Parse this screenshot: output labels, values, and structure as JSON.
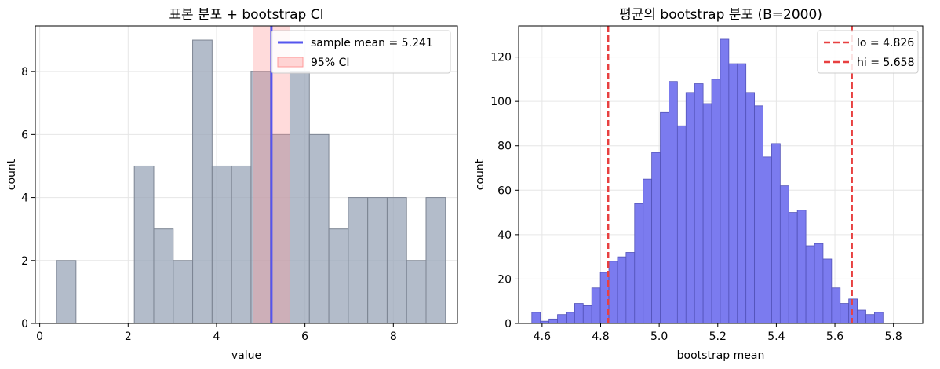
{
  "chart_data": [
    {
      "type": "bar",
      "title": "표본 분포 + bootstrap CI",
      "xlabel": "value",
      "ylabel": "count",
      "xlim": [
        -0.1,
        9.45
      ],
      "ylim": [
        0,
        9.45
      ],
      "xticks": [
        0,
        2,
        4,
        6,
        8
      ],
      "yticks": [
        0,
        2,
        4,
        6,
        8
      ],
      "grid": true,
      "legend_position": "top-right",
      "bar_color": "#9aa5b8",
      "bins": [
        {
          "x0": 0.38,
          "x1": 0.82,
          "count": 2
        },
        {
          "x0": 0.82,
          "x1": 1.26,
          "count": 0
        },
        {
          "x0": 1.26,
          "x1": 1.7,
          "count": 0
        },
        {
          "x0": 1.7,
          "x1": 2.14,
          "count": 0
        },
        {
          "x0": 2.14,
          "x1": 2.58,
          "count": 5
        },
        {
          "x0": 2.58,
          "x1": 3.02,
          "count": 3
        },
        {
          "x0": 3.02,
          "x1": 3.46,
          "count": 2
        },
        {
          "x0": 3.46,
          "x1": 3.9,
          "count": 9
        },
        {
          "x0": 3.9,
          "x1": 4.34,
          "count": 5
        },
        {
          "x0": 4.34,
          "x1": 4.78,
          "count": 5
        },
        {
          "x0": 4.78,
          "x1": 5.22,
          "count": 8
        },
        {
          "x0": 5.22,
          "x1": 5.66,
          "count": 6
        },
        {
          "x0": 5.66,
          "x1": 6.1,
          "count": 8
        },
        {
          "x0": 6.1,
          "x1": 6.54,
          "count": 6
        },
        {
          "x0": 6.54,
          "x1": 6.98,
          "count": 3
        },
        {
          "x0": 6.98,
          "x1": 7.42,
          "count": 4
        },
        {
          "x0": 7.42,
          "x1": 7.86,
          "count": 4
        },
        {
          "x0": 7.86,
          "x1": 8.3,
          "count": 4
        },
        {
          "x0": 8.3,
          "x1": 8.74,
          "count": 2
        },
        {
          "x0": 8.74,
          "x1": 9.18,
          "count": 4
        }
      ],
      "sample_mean": 5.241,
      "ci": [
        4.826,
        5.658
      ],
      "mean_color": "#5555ee",
      "ci_color": "#ff9999",
      "legend": [
        {
          "label": "sample mean = 5.241",
          "kind": "line",
          "color": "#5555ee"
        },
        {
          "label": "95% CI",
          "kind": "patch",
          "color": "#ff9999"
        }
      ]
    },
    {
      "type": "bar",
      "title": "평균의 bootstrap 분포 (B=2000)",
      "xlabel": "bootstrap mean",
      "ylabel": "count",
      "xlim": [
        4.52,
        5.9
      ],
      "ylim": [
        0,
        134
      ],
      "xticks": [
        4.6,
        4.8,
        5.0,
        5.2,
        5.4,
        5.6,
        5.8
      ],
      "yticks": [
        0,
        20,
        40,
        60,
        80,
        100,
        120
      ],
      "grid": true,
      "legend_position": "top-right",
      "bar_color": "#7b7bef",
      "bin_start": 4.565,
      "bin_width": 0.02925,
      "counts": [
        5,
        1,
        2,
        4,
        5,
        9,
        8,
        16,
        23,
        28,
        30,
        32,
        54,
        65,
        77,
        95,
        109,
        89,
        104,
        108,
        99,
        110,
        128,
        117,
        117,
        104,
        98,
        75,
        81,
        62,
        50,
        51,
        35,
        36,
        29,
        16,
        9,
        11,
        6,
        4,
        5
      ],
      "lo": 4.826,
      "hi": 5.658,
      "line_color": "#e84040",
      "legend": [
        {
          "label": "lo = 4.826",
          "kind": "dashed",
          "color": "#e84040"
        },
        {
          "label": "hi = 5.658",
          "kind": "dashed",
          "color": "#e84040"
        }
      ]
    }
  ]
}
